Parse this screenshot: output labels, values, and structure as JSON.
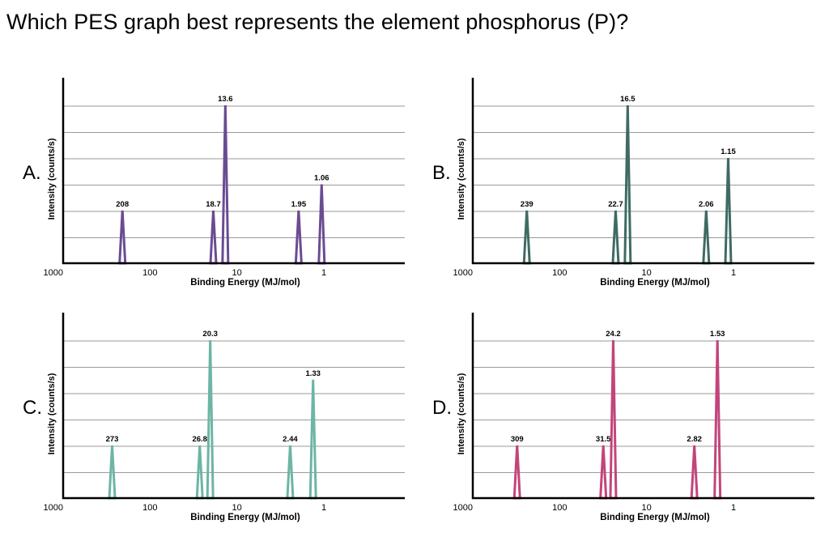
{
  "question": "Which PES graph best represents the element phosphorus (P)?",
  "chart_data": [
    {
      "type": "line",
      "option_label": "A.",
      "color": "#6a4c93",
      "xlabel": "Binding Energy (MJ/mol)",
      "ylabel": "Intensity (counts/s)",
      "x_scale": "log",
      "x_reversed": true,
      "xlim": [
        1000,
        0.12
      ],
      "x_ticks": [
        "1000",
        "100",
        "10",
        "1"
      ],
      "ylim": [
        0,
        6
      ],
      "grid": true,
      "peaks": [
        {
          "label": "208",
          "x": 208,
          "height": 2
        },
        {
          "label": "18.7",
          "x": 18.7,
          "height": 2
        },
        {
          "label": "13.6",
          "x": 13.6,
          "height": 6
        },
        {
          "label": "1.95",
          "x": 1.95,
          "height": 2
        },
        {
          "label": "1.06",
          "x": 1.06,
          "height": 3
        }
      ]
    },
    {
      "type": "line",
      "option_label": "B.",
      "color": "#3f6b63",
      "xlabel": "Binding Energy (MJ/mol)",
      "ylabel": "Intensity (counts/s)",
      "x_scale": "log",
      "x_reversed": true,
      "xlim": [
        1000,
        0.12
      ],
      "x_ticks": [
        "1000",
        "100",
        "10",
        "1"
      ],
      "ylim": [
        0,
        6
      ],
      "grid": true,
      "peaks": [
        {
          "label": "239",
          "x": 239,
          "height": 2
        },
        {
          "label": "22.7",
          "x": 22.7,
          "height": 2
        },
        {
          "label": "16.5",
          "x": 16.5,
          "height": 6
        },
        {
          "label": "2.06",
          "x": 2.06,
          "height": 2
        },
        {
          "label": "1.15",
          "x": 1.15,
          "height": 4
        }
      ]
    },
    {
      "type": "line",
      "option_label": "C.",
      "color": "#6db5a4",
      "xlabel": "Binding Energy (MJ/mol)",
      "ylabel": "Intensity (counts/s)",
      "x_scale": "log",
      "x_reversed": true,
      "xlim": [
        1000,
        0.12
      ],
      "x_ticks": [
        "1000",
        "100",
        "10",
        "1"
      ],
      "ylim": [
        0,
        6
      ],
      "grid": true,
      "peaks": [
        {
          "label": "273",
          "x": 273,
          "height": 2
        },
        {
          "label": "26.8",
          "x": 26.8,
          "height": 2
        },
        {
          "label": "20.3",
          "x": 20.3,
          "height": 6
        },
        {
          "label": "2.44",
          "x": 2.44,
          "height": 2
        },
        {
          "label": "1.33",
          "x": 1.33,
          "height": 4.5
        }
      ]
    },
    {
      "type": "line",
      "option_label": "D.",
      "color": "#c2457a",
      "xlabel": "Binding Energy (MJ/mol)",
      "ylabel": "Intensity (counts/s)",
      "x_scale": "log",
      "x_reversed": true,
      "xlim": [
        1000,
        0.12
      ],
      "x_ticks": [
        "1000",
        "100",
        "10",
        "1"
      ],
      "ylim": [
        0,
        6
      ],
      "grid": true,
      "peaks": [
        {
          "label": "309",
          "x": 309,
          "height": 2
        },
        {
          "label": "31.5",
          "x": 31.5,
          "height": 2
        },
        {
          "label": "24.2",
          "x": 24.2,
          "height": 6
        },
        {
          "label": "2.82",
          "x": 2.82,
          "height": 2
        },
        {
          "label": "1.53",
          "x": 1.53,
          "height": 6
        }
      ]
    }
  ]
}
